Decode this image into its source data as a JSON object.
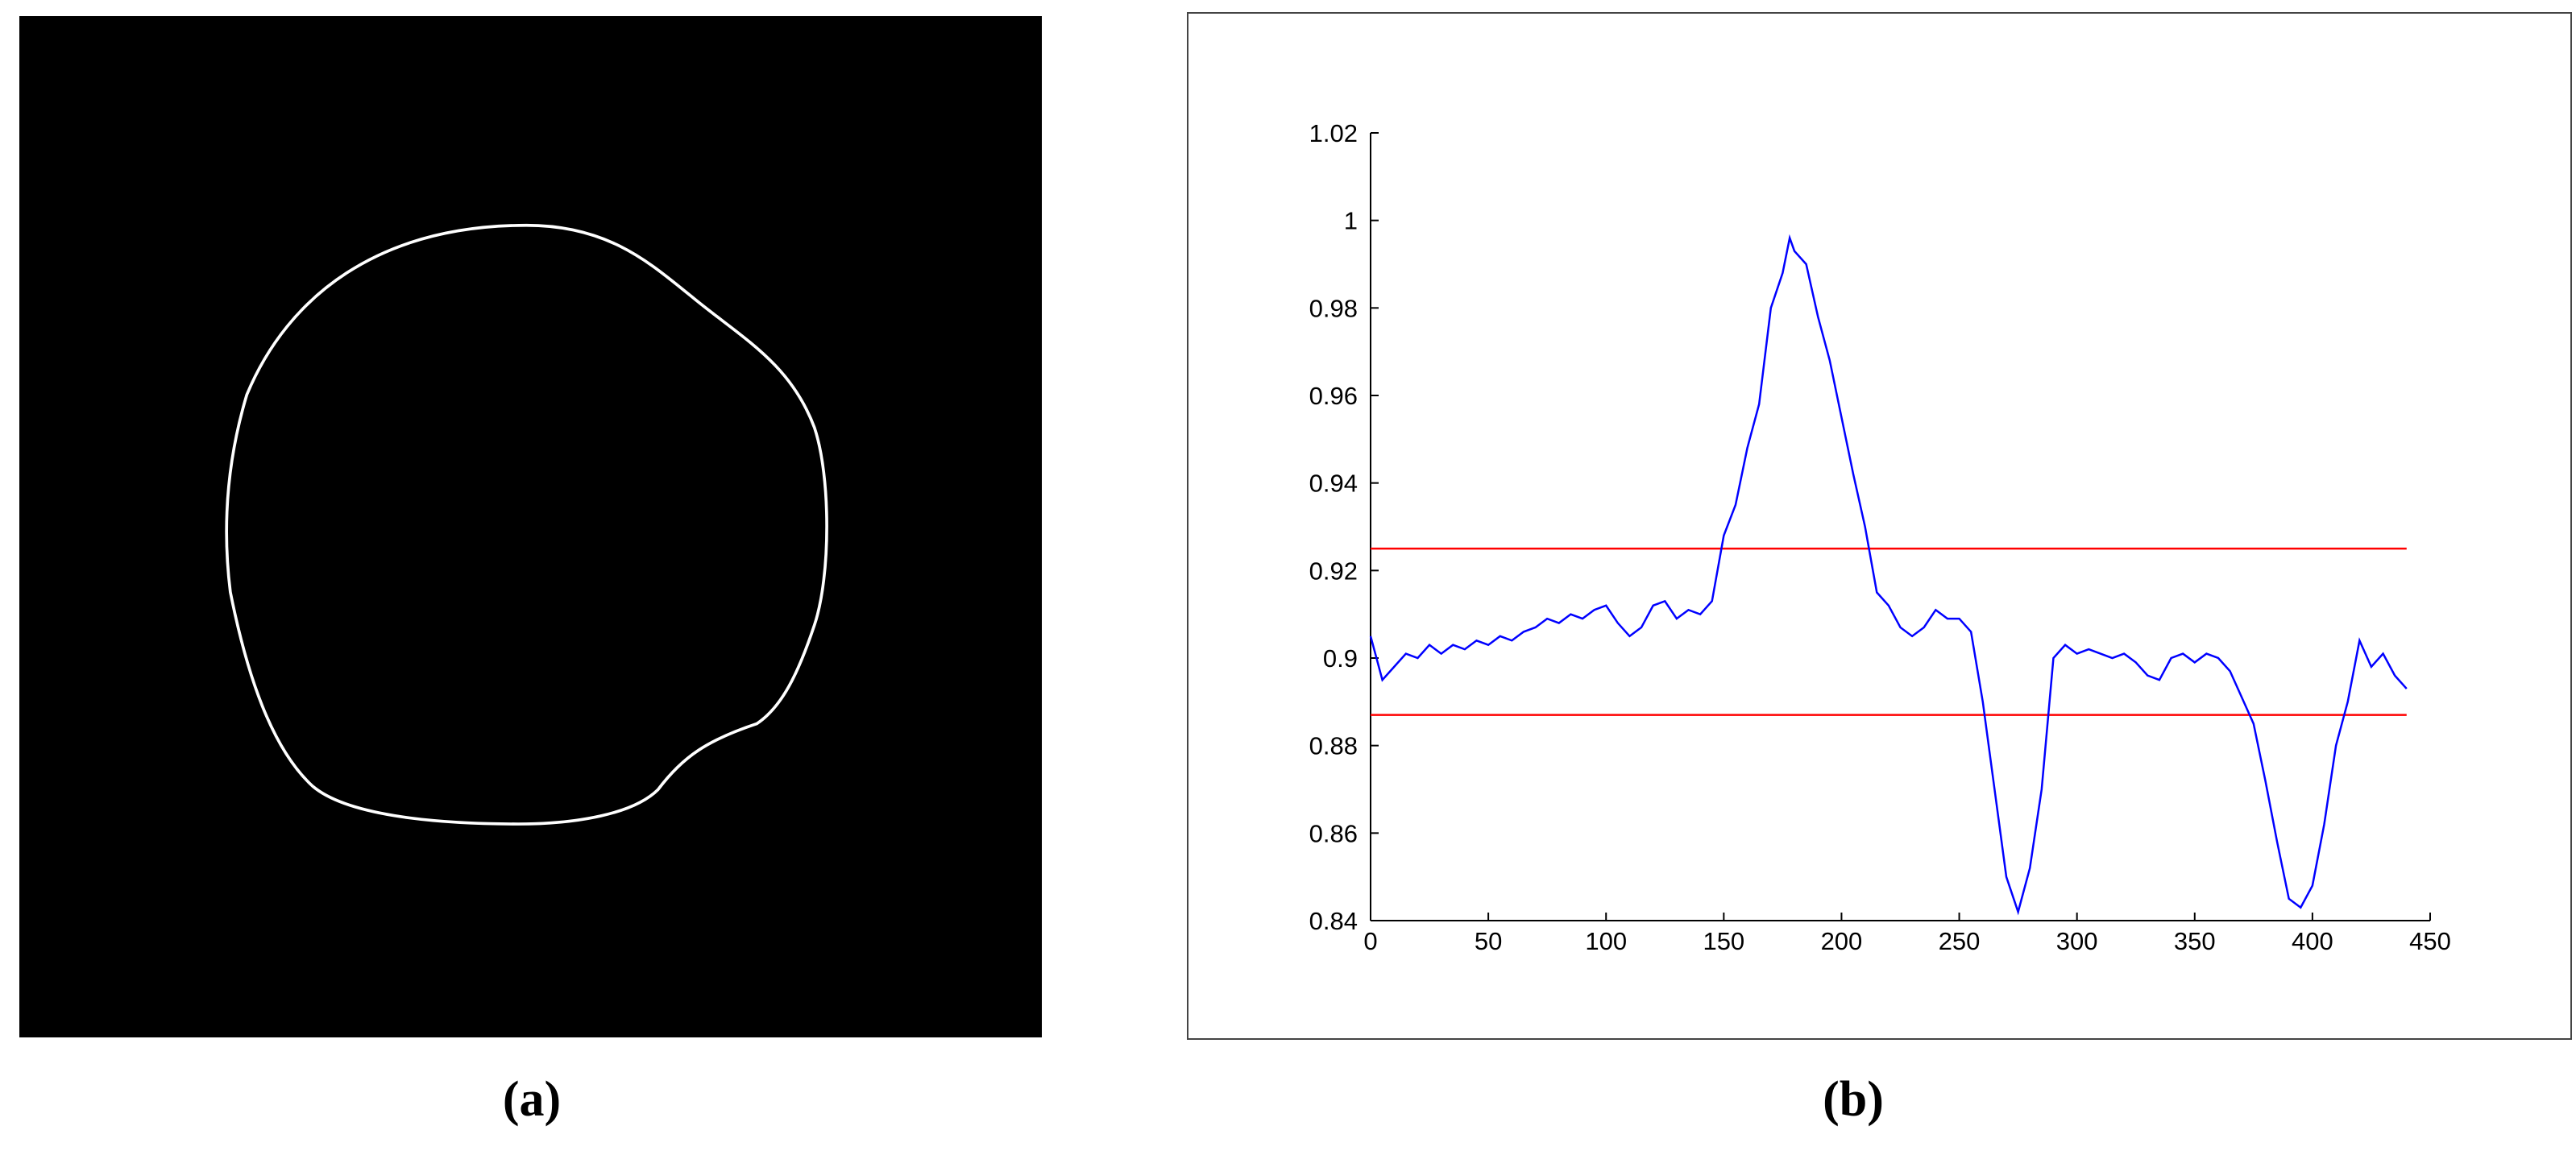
{
  "panels": {
    "a": {
      "caption": "(a)"
    },
    "b": {
      "caption": "(b)"
    }
  },
  "chart_data": {
    "type": "line",
    "x": [
      0,
      5,
      10,
      15,
      20,
      25,
      30,
      35,
      40,
      45,
      50,
      55,
      60,
      65,
      70,
      75,
      80,
      85,
      90,
      95,
      100,
      105,
      110,
      115,
      120,
      125,
      130,
      135,
      140,
      145,
      150,
      155,
      160,
      165,
      170,
      175,
      178,
      180,
      185,
      190,
      195,
      200,
      205,
      210,
      215,
      220,
      225,
      230,
      235,
      240,
      245,
      250,
      255,
      260,
      265,
      270,
      275,
      280,
      285,
      290,
      295,
      300,
      305,
      310,
      315,
      320,
      325,
      330,
      335,
      340,
      345,
      350,
      355,
      360,
      365,
      370,
      375,
      380,
      385,
      390,
      395,
      400,
      405,
      410,
      415,
      420,
      425,
      430,
      435,
      440
    ],
    "series": [
      {
        "color": "#0000ff",
        "values": [
          0.905,
          0.895,
          0.898,
          0.901,
          0.9,
          0.903,
          0.901,
          0.903,
          0.902,
          0.904,
          0.903,
          0.905,
          0.904,
          0.906,
          0.907,
          0.909,
          0.908,
          0.91,
          0.909,
          0.911,
          0.912,
          0.908,
          0.905,
          0.907,
          0.912,
          0.913,
          0.909,
          0.911,
          0.91,
          0.913,
          0.928,
          0.935,
          0.948,
          0.958,
          0.98,
          0.988,
          0.996,
          0.993,
          0.99,
          0.978,
          0.968,
          0.955,
          0.942,
          0.93,
          0.915,
          0.912,
          0.907,
          0.905,
          0.907,
          0.911,
          0.909,
          0.909,
          0.906,
          0.89,
          0.87,
          0.85,
          0.842,
          0.852,
          0.87,
          0.9,
          0.903,
          0.901,
          0.902,
          0.901,
          0.9,
          0.901,
          0.899,
          0.896,
          0.895,
          0.9,
          0.901,
          0.899,
          0.901,
          0.9,
          0.897,
          0.891,
          0.885,
          0.872,
          0.858,
          0.845,
          0.843,
          0.848,
          0.862,
          0.88,
          0.89,
          0.904,
          0.898,
          0.901,
          0.896,
          0.893
        ]
      }
    ],
    "reference_lines": [
      {
        "y": 0.925,
        "x": [
          0,
          440
        ],
        "color": "#ff0000"
      },
      {
        "y": 0.887,
        "x": [
          0,
          440
        ],
        "color": "#ff0000"
      }
    ],
    "xlim": [
      0,
      450
    ],
    "xticks": [
      0,
      50,
      100,
      150,
      200,
      250,
      300,
      350,
      400,
      450
    ],
    "ylim": [
      0.84,
      1.02
    ],
    "yticks": [
      0.84,
      0.86,
      0.88,
      0.9,
      0.92,
      0.94,
      0.96,
      0.98,
      1,
      1.02
    ]
  }
}
